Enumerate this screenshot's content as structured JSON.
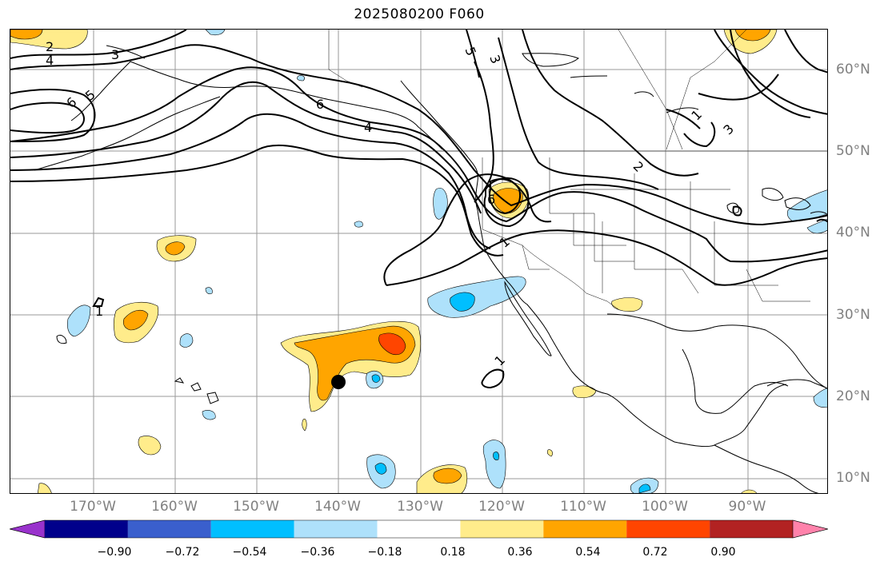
{
  "title": "2025080200 F060",
  "map": {
    "lon_labels": [
      "170°W",
      "160°W",
      "150°W",
      "140°W",
      "130°W",
      "120°W",
      "110°W",
      "100°W",
      "90°W"
    ],
    "lat_labels": [
      "60°N",
      "50°N",
      "40°N",
      "30°N",
      "20°N",
      "10°N"
    ],
    "contour_labels": [
      "2",
      "4",
      "3",
      "6",
      "5",
      "6",
      "4",
      "5",
      "3",
      "1",
      "3",
      "6",
      "2",
      "1",
      "1",
      "1"
    ],
    "marker": "black-dot"
  },
  "colorbar": {
    "ticks": [
      "−0.90",
      "−0.72",
      "−0.54",
      "−0.36",
      "−0.18",
      "0.18",
      "0.36",
      "0.54",
      "0.72",
      "0.90"
    ],
    "colors": [
      "#9932cc",
      "#00008b",
      "#3a5fcd",
      "#00bfff",
      "#aee1fb",
      "#ffffff",
      "#ffec8b",
      "#ffa500",
      "#ff4500",
      "#b22222",
      "#ff82ab"
    ]
  }
}
